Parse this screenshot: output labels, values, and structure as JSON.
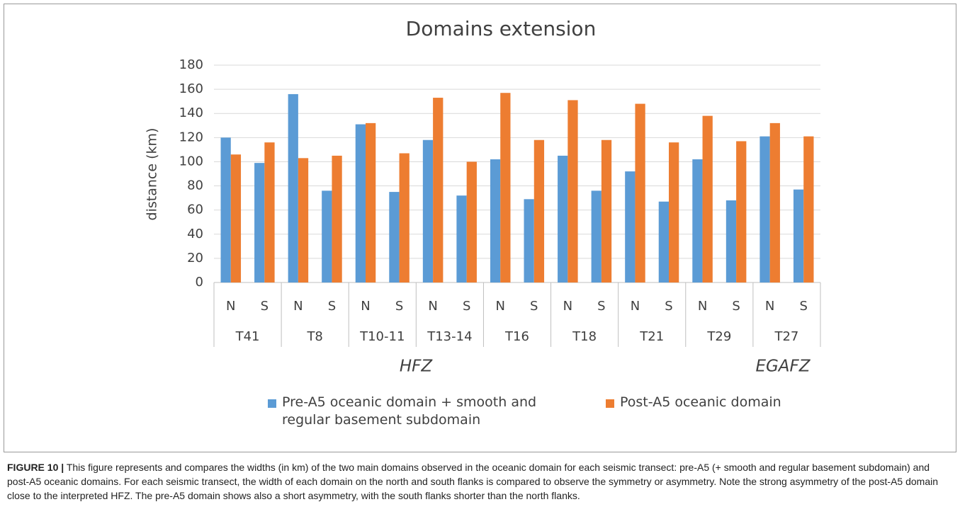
{
  "chart_data": {
    "type": "bar",
    "title": "Domains extension",
    "y_label": "distance (km)",
    "categories": [
      "N",
      "S",
      "N",
      "S",
      "N",
      "S",
      "N",
      "S",
      "N",
      "S",
      "N",
      "S",
      "N",
      "S",
      "N",
      "S",
      "N",
      "S"
    ],
    "groups": [
      "T41",
      "T8",
      "T10-11",
      "T13-14",
      "T16",
      "T18",
      "T21",
      "T29",
      "T27"
    ],
    "annotations": [
      "HFZ",
      "EGAFZ"
    ],
    "series": [
      {
        "name": "Pre-A5 oceanic domain + smooth and regular basement subdomain",
        "color": "#5b9bd5",
        "values": [
          120,
          99,
          156,
          76,
          131,
          75,
          118,
          72,
          102,
          69,
          105,
          76,
          92,
          67,
          102,
          68,
          121,
          77
        ]
      },
      {
        "name": "Post-A5 oceanic domain",
        "color": "#ed7d31",
        "values": [
          106,
          116,
          103,
          105,
          132,
          107,
          153,
          100,
          157,
          118,
          151,
          118,
          148,
          116,
          138,
          117,
          132,
          121
        ]
      }
    ],
    "ylim": [
      0,
      180
    ],
    "yticks": [
      0,
      20,
      40,
      60,
      80,
      100,
      120,
      140,
      160,
      180
    ],
    "grid": true
  },
  "caption": {
    "label": "FIGURE 10 |",
    "text": "This figure represents and compares the widths (in km) of the two main domains observed in the oceanic domain for each seismic transect: pre-A5 (+ smooth and regular basement subdomain) and post-A5 oceanic domains. For each seismic transect, the width of each domain on the north and south flanks is compared to observe the symmetry or asymmetry. Note the strong asymmetry of the post-A5 domain close to the interpreted HFZ. The pre-A5 domain shows also a short asymmetry, with the south flanks shorter than the north flanks."
  }
}
